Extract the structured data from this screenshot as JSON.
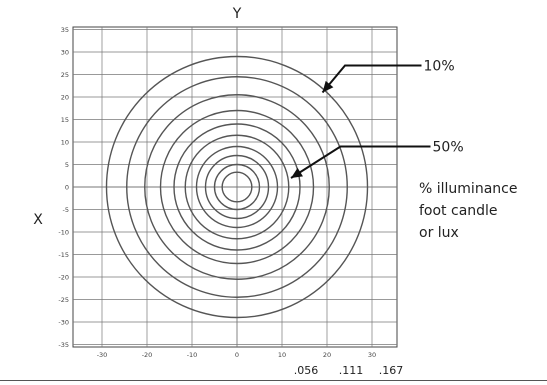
{
  "chart_data": {
    "type": "contour",
    "x_axis_label": "X",
    "y_axis_label": "Y",
    "x_ticks": [
      "-30",
      "-20",
      "-10",
      "0",
      "10",
      "20",
      "30"
    ],
    "y_ticks": [
      "35",
      "30",
      "25",
      "20",
      "15",
      "10",
      "5",
      "0",
      "-5",
      "-10",
      "-15",
      "-20",
      "-25",
      "-30",
      "-35"
    ],
    "xlim": [
      -36,
      36
    ],
    "ylim": [
      -36,
      36
    ],
    "grid": true,
    "contour_radii": [
      29,
      24.5,
      20.5,
      17,
      14,
      11.5,
      9,
      7,
      5,
      3.3
    ],
    "callouts": [
      {
        "label": "10%",
        "target": [
          19,
          21
        ],
        "elbow": [
          24,
          27
        ],
        "end": [
          41,
          27
        ]
      },
      {
        "label": "50%",
        "target": [
          12,
          2
        ],
        "elbow": [
          23,
          9
        ],
        "end": [
          43,
          9
        ]
      }
    ],
    "illuminance_scale": [
      ".056",
      ".111",
      ".167"
    ],
    "note_lines": [
      "% illuminance",
      "foot candle",
      "or lux"
    ]
  }
}
